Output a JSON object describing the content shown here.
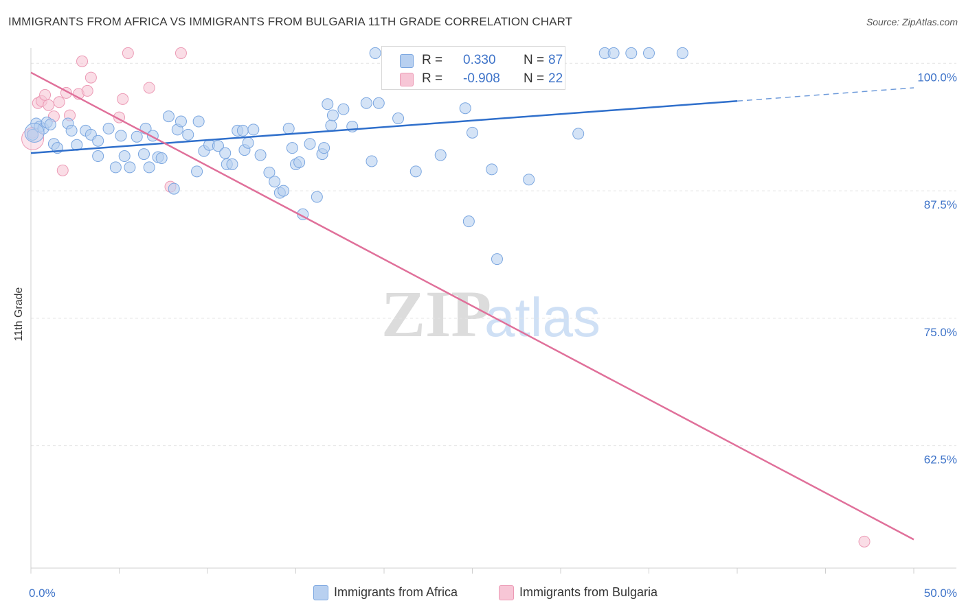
{
  "title": "IMMIGRANTS FROM AFRICA VS IMMIGRANTS FROM BULGARIA 11TH GRADE CORRELATION CHART",
  "source": "Source: ZipAtlas.com",
  "watermark": {
    "zip": "ZIP",
    "atlas": "atlas"
  },
  "colors": {
    "blue_fill": "#b8d0f0",
    "blue_stroke": "#7aa6e0",
    "blue_line": "#2f6fcb",
    "pink_fill": "#f7c6d6",
    "pink_stroke": "#ec9ab5",
    "pink_line": "#e0709a",
    "axis_text": "#3f74c9",
    "grid": "#e4e4e4"
  },
  "legend": {
    "r_label": "R =",
    "n_label": "N =",
    "africa": {
      "r": "0.330",
      "n": "87"
    },
    "bulgaria": {
      "r": "-0.908",
      "n": "22"
    }
  },
  "chart_data": {
    "type": "scatter",
    "title": "IMMIGRANTS FROM AFRICA VS IMMIGRANTS FROM BULGARIA 11TH GRADE CORRELATION CHART",
    "xlabel": "",
    "ylabel": "11th Grade",
    "xlim": [
      0,
      50
    ],
    "ylim": [
      50.5,
      101.5
    ],
    "x_tick_labels": [
      "0.0%",
      "50.0%"
    ],
    "y_ticks": [
      62.5,
      75.0,
      87.5,
      100.0
    ],
    "y_tick_labels": [
      "62.5%",
      "75.0%",
      "87.5%",
      "100.0%"
    ],
    "grid": "horizontal dashed",
    "legend_position": "top-center",
    "series": [
      {
        "name": "Immigrants from Africa",
        "color": "#b8d0f0",
        "trend": {
          "x0": 0,
          "y0": 91.2,
          "x1": 40,
          "y1": 96.3,
          "dashed_to_x": 50,
          "dashed_to_y": 97.6
        },
        "points": [
          [
            0.1,
            93.0
          ],
          [
            0.3,
            94.1
          ],
          [
            0.5,
            93.8
          ],
          [
            0.7,
            93.6
          ],
          [
            0.9,
            94.2
          ],
          [
            1.1,
            94.0
          ],
          [
            1.3,
            92.1
          ],
          [
            1.5,
            91.7
          ],
          [
            2.1,
            94.1
          ],
          [
            2.3,
            93.4
          ],
          [
            2.6,
            92.0
          ],
          [
            3.1,
            93.4
          ],
          [
            3.4,
            93.0
          ],
          [
            3.8,
            90.9
          ],
          [
            3.8,
            92.4
          ],
          [
            4.4,
            93.6
          ],
          [
            4.8,
            89.8
          ],
          [
            5.1,
            92.9
          ],
          [
            5.3,
            90.9
          ],
          [
            5.6,
            89.8
          ],
          [
            6.0,
            92.8
          ],
          [
            6.4,
            91.1
          ],
          [
            6.5,
            93.6
          ],
          [
            6.7,
            89.8
          ],
          [
            6.9,
            92.9
          ],
          [
            7.2,
            90.8
          ],
          [
            7.4,
            90.7
          ],
          [
            7.8,
            94.8
          ],
          [
            8.1,
            87.7
          ],
          [
            8.3,
            93.5
          ],
          [
            8.5,
            94.3
          ],
          [
            8.9,
            93.0
          ],
          [
            9.4,
            89.4
          ],
          [
            9.5,
            94.3
          ],
          [
            9.8,
            91.4
          ],
          [
            10.1,
            92.0
          ],
          [
            10.6,
            91.9
          ],
          [
            11.0,
            91.2
          ],
          [
            11.1,
            90.1
          ],
          [
            11.4,
            90.1
          ],
          [
            11.7,
            93.4
          ],
          [
            12.0,
            93.4
          ],
          [
            12.1,
            91.5
          ],
          [
            12.3,
            92.2
          ],
          [
            12.6,
            93.5
          ],
          [
            13.0,
            91.0
          ],
          [
            13.5,
            89.3
          ],
          [
            13.8,
            88.4
          ],
          [
            14.1,
            87.3
          ],
          [
            14.3,
            87.5
          ],
          [
            14.6,
            93.6
          ],
          [
            14.8,
            91.7
          ],
          [
            15.0,
            90.1
          ],
          [
            15.2,
            90.3
          ],
          [
            15.4,
            85.2
          ],
          [
            15.8,
            92.1
          ],
          [
            16.2,
            86.9
          ],
          [
            16.5,
            91.1
          ],
          [
            16.6,
            91.7
          ],
          [
            16.8,
            96.0
          ],
          [
            17.0,
            93.9
          ],
          [
            17.1,
            94.9
          ],
          [
            17.7,
            95.5
          ],
          [
            18.2,
            93.8
          ],
          [
            19.0,
            96.1
          ],
          [
            19.3,
            90.4
          ],
          [
            19.5,
            101.0
          ],
          [
            19.7,
            96.1
          ],
          [
            20.8,
            94.6
          ],
          [
            21.8,
            89.4
          ],
          [
            23.2,
            91.0
          ],
          [
            24.6,
            95.6
          ],
          [
            24.8,
            84.5
          ],
          [
            25.0,
            93.2
          ],
          [
            25.4,
            101.0
          ],
          [
            26.1,
            89.6
          ],
          [
            26.4,
            80.8
          ],
          [
            28.2,
            88.6
          ],
          [
            28.9,
            101.0
          ],
          [
            31.0,
            93.1
          ],
          [
            32.5,
            101.0
          ],
          [
            33.0,
            101.0
          ],
          [
            34.0,
            101.0
          ],
          [
            35.0,
            101.0
          ],
          [
            36.9,
            101.0
          ]
        ]
      },
      {
        "name": "Immigrants from Bulgaria",
        "color": "#f7c6d6",
        "trend": {
          "x0": 0,
          "y0": 99.1,
          "x1": 50,
          "y1": 53.3
        },
        "points": [
          [
            0.1,
            93.2
          ],
          [
            0.4,
            96.1
          ],
          [
            0.6,
            96.3
          ],
          [
            0.8,
            96.9
          ],
          [
            1.0,
            95.9
          ],
          [
            1.3,
            94.8
          ],
          [
            1.6,
            96.2
          ],
          [
            1.8,
            89.5
          ],
          [
            2.0,
            97.1
          ],
          [
            2.2,
            94.9
          ],
          [
            2.7,
            97.0
          ],
          [
            2.9,
            100.2
          ],
          [
            3.2,
            97.3
          ],
          [
            3.4,
            98.6
          ],
          [
            5.0,
            94.7
          ],
          [
            5.2,
            96.5
          ],
          [
            5.5,
            101.0
          ],
          [
            6.7,
            97.6
          ],
          [
            7.9,
            87.9
          ],
          [
            8.5,
            101.0
          ],
          [
            47.2,
            53.1
          ]
        ]
      }
    ]
  },
  "bottom_legend": {
    "africa": "Immigrants from Africa",
    "bulgaria": "Immigrants from Bulgaria"
  }
}
